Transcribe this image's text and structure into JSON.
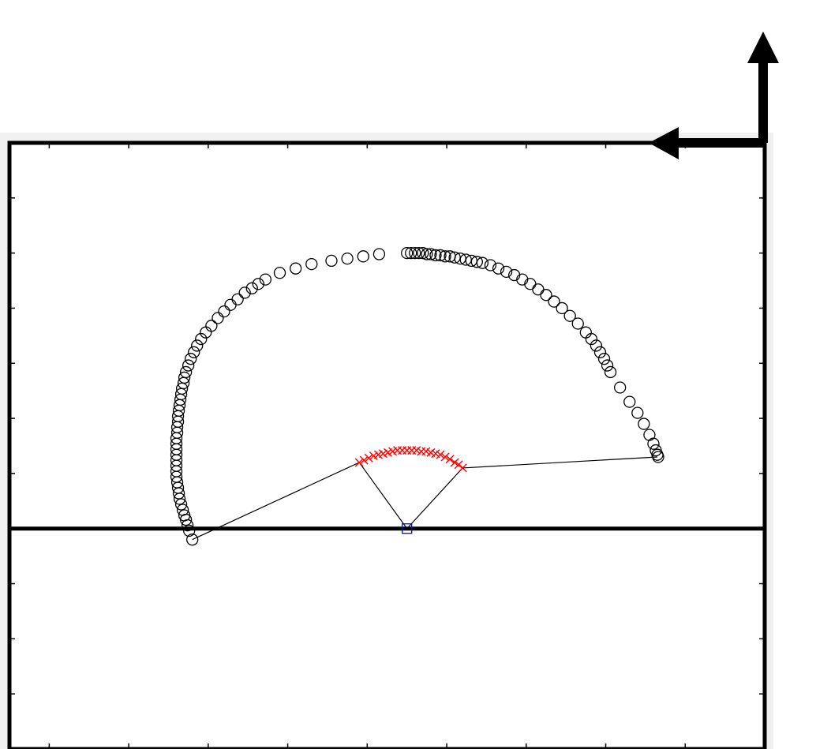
{
  "chart_data": {
    "type": "scatter",
    "title": "",
    "xlabel": "",
    "ylabel": "",
    "xlim": [
      -0.5,
      9
    ],
    "ylim": [
      -2,
      3.5
    ],
    "xticks": [
      0,
      1,
      2,
      3,
      4,
      5,
      6,
      7,
      8
    ],
    "yticks": [
      -1.5,
      -1,
      -0.5,
      0,
      0.5,
      1,
      1.5,
      2,
      2.5,
      3
    ],
    "ground_line_y": 0,
    "grid": false,
    "legend": "none",
    "colors": {
      "frame": "#000000",
      "circles": "#000000",
      "crosses": "#ff0000",
      "pivot": "#0000ff",
      "links": "#000000",
      "axes_bg": "#f0f0f0"
    },
    "arrows": [
      {
        "name": "up-arrow",
        "direction": "up"
      },
      {
        "name": "left-arrow",
        "direction": "left"
      }
    ],
    "pivot": {
      "x": 4.5,
      "y": 0
    },
    "linkage": [
      {
        "x": 1.8,
        "y": -0.1
      },
      {
        "x": 3.9,
        "y": 0.6
      },
      {
        "x": 4.5,
        "y": 0
      },
      {
        "x": 5.2,
        "y": 0.55
      },
      {
        "x": 7.65,
        "y": 0.65
      }
    ],
    "series": [
      {
        "marker": "circle",
        "points": [
          [
            1.8,
            -0.1
          ],
          [
            1.76,
            -0.02
          ],
          [
            1.74,
            0.03
          ],
          [
            1.72,
            0.08
          ],
          [
            1.7,
            0.12
          ],
          [
            1.68,
            0.17
          ],
          [
            1.66,
            0.22
          ],
          [
            1.64,
            0.27
          ],
          [
            1.63,
            0.32
          ],
          [
            1.62,
            0.37
          ],
          [
            1.61,
            0.42
          ],
          [
            1.6,
            0.47
          ],
          [
            1.6,
            0.52
          ],
          [
            1.6,
            0.57
          ],
          [
            1.6,
            0.62
          ],
          [
            1.6,
            0.67
          ],
          [
            1.6,
            0.72
          ],
          [
            1.6,
            0.77
          ],
          [
            1.6,
            0.82
          ],
          [
            1.61,
            0.87
          ],
          [
            1.61,
            0.92
          ],
          [
            1.62,
            0.97
          ],
          [
            1.62,
            1.02
          ],
          [
            1.63,
            1.07
          ],
          [
            1.64,
            1.12
          ],
          [
            1.65,
            1.17
          ],
          [
            1.66,
            1.22
          ],
          [
            1.67,
            1.27
          ],
          [
            1.69,
            1.32
          ],
          [
            1.7,
            1.37
          ],
          [
            1.72,
            1.42
          ],
          [
            1.75,
            1.48
          ],
          [
            1.78,
            1.54
          ],
          [
            1.82,
            1.6
          ],
          [
            1.86,
            1.66
          ],
          [
            1.91,
            1.72
          ],
          [
            1.97,
            1.78
          ],
          [
            2.04,
            1.84
          ],
          [
            2.12,
            1.91
          ],
          [
            2.2,
            1.97
          ],
          [
            2.28,
            2.03
          ],
          [
            2.37,
            2.08
          ],
          [
            2.46,
            2.14
          ],
          [
            2.55,
            2.18
          ],
          [
            2.63,
            2.22
          ],
          [
            2.72,
            2.26
          ],
          [
            2.9,
            2.32
          ],
          [
            3.1,
            2.36
          ],
          [
            3.3,
            2.4
          ],
          [
            3.55,
            2.43
          ],
          [
            3.75,
            2.45
          ],
          [
            3.95,
            2.47
          ],
          [
            4.15,
            2.49
          ],
          [
            4.5,
            2.5
          ],
          [
            4.55,
            2.5
          ],
          [
            4.6,
            2.5
          ],
          [
            4.65,
            2.5
          ],
          [
            4.7,
            2.5
          ],
          [
            4.75,
            2.49
          ],
          [
            4.8,
            2.49
          ],
          [
            4.86,
            2.48
          ],
          [
            4.92,
            2.48
          ],
          [
            4.98,
            2.47
          ],
          [
            5.04,
            2.47
          ],
          [
            5.1,
            2.46
          ],
          [
            5.17,
            2.45
          ],
          [
            5.24,
            2.44
          ],
          [
            5.31,
            2.43
          ],
          [
            5.38,
            2.42
          ],
          [
            5.45,
            2.41
          ],
          [
            5.55,
            2.39
          ],
          [
            5.65,
            2.36
          ],
          [
            5.75,
            2.33
          ],
          [
            5.85,
            2.3
          ],
          [
            5.95,
            2.26
          ],
          [
            6.05,
            2.22
          ],
          [
            6.15,
            2.17
          ],
          [
            6.25,
            2.12
          ],
          [
            6.35,
            2.06
          ],
          [
            6.45,
            2
          ],
          [
            6.55,
            1.93
          ],
          [
            6.65,
            1.86
          ],
          [
            6.75,
            1.78
          ],
          [
            6.82,
            1.72
          ],
          [
            6.88,
            1.66
          ],
          [
            6.93,
            1.6
          ],
          [
            6.98,
            1.54
          ],
          [
            7.02,
            1.48
          ],
          [
            7.06,
            1.42
          ],
          [
            7.18,
            1.28
          ],
          [
            7.3,
            1.15
          ],
          [
            7.4,
            1.05
          ],
          [
            7.48,
            0.95
          ],
          [
            7.55,
            0.85
          ],
          [
            7.6,
            0.77
          ],
          [
            7.63,
            0.71
          ],
          [
            7.65,
            0.67
          ],
          [
            7.66,
            0.65
          ]
        ]
      },
      {
        "marker": "cross",
        "points": [
          [
            3.9,
            0.6
          ],
          [
            3.96,
            0.62
          ],
          [
            4.02,
            0.64
          ],
          [
            4.08,
            0.66
          ],
          [
            4.14,
            0.67
          ],
          [
            4.2,
            0.68
          ],
          [
            4.26,
            0.69
          ],
          [
            4.32,
            0.7
          ],
          [
            4.38,
            0.71
          ],
          [
            4.44,
            0.71
          ],
          [
            4.5,
            0.71
          ],
          [
            4.56,
            0.71
          ],
          [
            4.62,
            0.71
          ],
          [
            4.68,
            0.7
          ],
          [
            4.74,
            0.7
          ],
          [
            4.8,
            0.69
          ],
          [
            4.86,
            0.68
          ],
          [
            4.92,
            0.67
          ],
          [
            4.98,
            0.65
          ],
          [
            5.04,
            0.63
          ],
          [
            5.1,
            0.6
          ],
          [
            5.15,
            0.58
          ],
          [
            5.2,
            0.55
          ]
        ]
      }
    ]
  }
}
